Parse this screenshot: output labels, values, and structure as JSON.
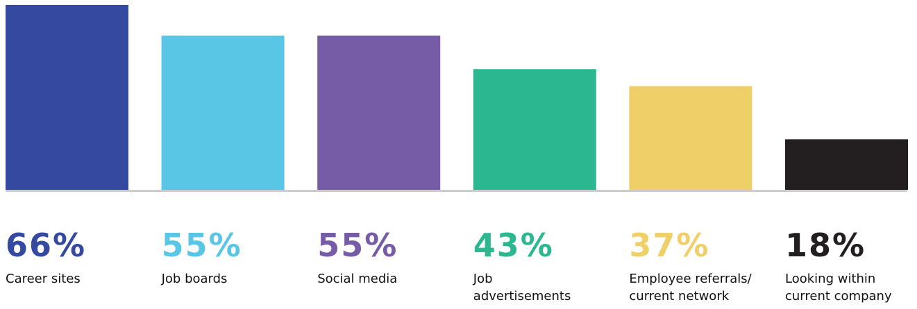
{
  "chart_data": {
    "type": "bar",
    "categories": [
      "Career sites",
      "Job boards",
      "Social media",
      "Job\nadvertisements",
      "Employee referrals/\ncurrent network",
      "Looking within\ncurrent company"
    ],
    "values": [
      66,
      55,
      55,
      43,
      37,
      18
    ],
    "value_labels": [
      "66%",
      "55%",
      "55%",
      "43%",
      "37%",
      "18%"
    ],
    "colors": [
      "#3549A1",
      "#59C6E6",
      "#765BA6",
      "#2BB78F",
      "#EFD068",
      "#231F20"
    ],
    "baseline_color": "#cccccc",
    "ylim": [
      0,
      66
    ],
    "grid": false,
    "legend": "none"
  }
}
